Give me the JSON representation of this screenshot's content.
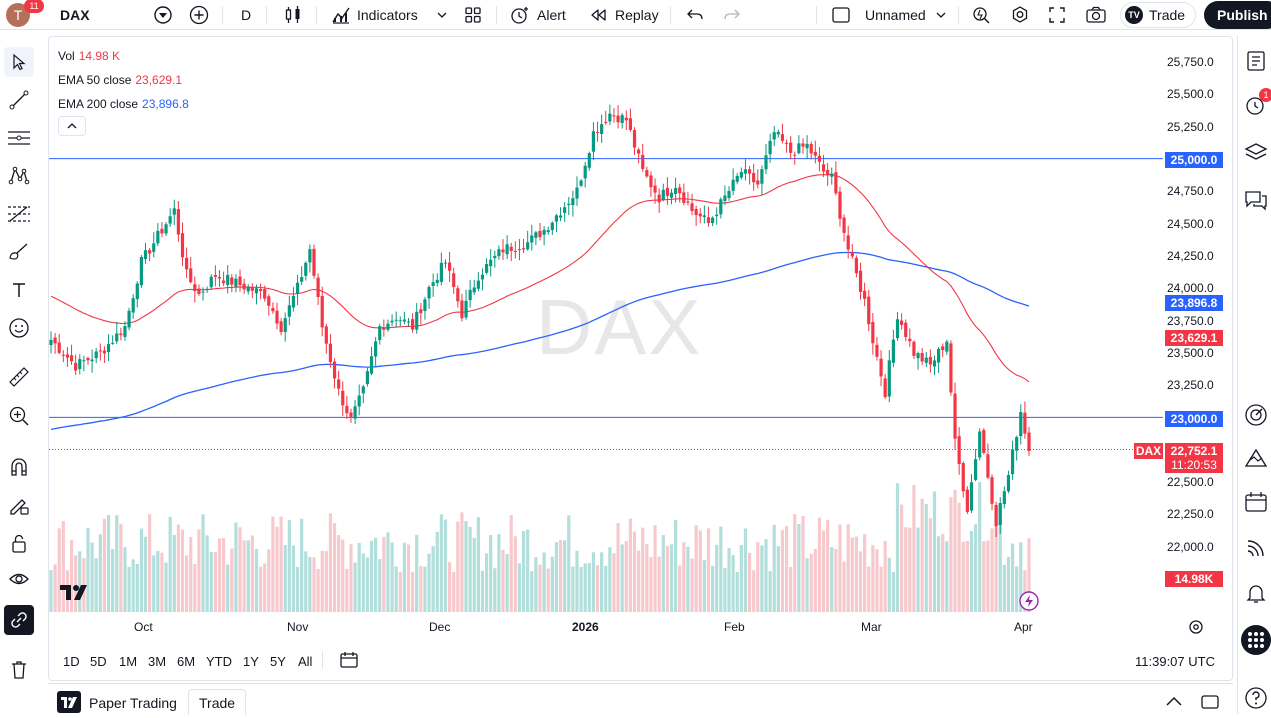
{
  "topbar": {
    "avatar_letter": "T",
    "notification_count": "11",
    "symbol": "DAX",
    "interval": "D",
    "indicators_label": "Indicators",
    "alert_label": "Alert",
    "replay_label": "Replay",
    "layout_name": "Unnamed",
    "trade_label": "Trade",
    "publish_label": "Publish"
  },
  "legend": {
    "vol_label": "Vol",
    "vol_value": "14.98 K",
    "ema50_label": "EMA 50 close",
    "ema50_value": "23,629.1",
    "ema200_label": "EMA 200 close",
    "ema200_value": "23,896.8"
  },
  "watermark": "DAX",
  "colors": {
    "up": "#089981",
    "down": "#f23645",
    "ema50": "#f23645",
    "ema200": "#2962ff",
    "hline": "#2962ff",
    "vol_up": "#b2dfdb",
    "vol_down": "#f7c9cd"
  },
  "price_axis": {
    "labels": [
      "25,750.0",
      "25,500.0",
      "25,250.0",
      "24,750.0",
      "24,500.0",
      "24,250.0",
      "24,000.0",
      "23,750.0",
      "23,500.0",
      "23,250.0",
      "22,500.0",
      "22,250.0",
      "22,000.0"
    ],
    "hline_upper": "25,000.0",
    "hline_lower": "23,000.0",
    "ema200_tag": "23,896.8",
    "ema50_tag": "23,629.1",
    "last_price": "22,752.1",
    "countdown": "11:20:53",
    "last_symbol": "DAX",
    "volume_tag": "14.98K"
  },
  "time_axis": {
    "labels": [
      "Oct",
      "Nov",
      "Dec",
      "2026",
      "Feb",
      "Mar",
      "Apr"
    ]
  },
  "ranges": [
    "1D",
    "5D",
    "1M",
    "3M",
    "6M",
    "YTD",
    "1Y",
    "5Y",
    "All"
  ],
  "clock": "11:39:07 UTC",
  "footer": {
    "paper_trading": "Paper Trading",
    "trade": "Trade"
  },
  "right_toolbar": {
    "alerts_badge": "1"
  },
  "chart_data": {
    "type": "candlestick",
    "symbol": "DAX",
    "interval": "D",
    "hlines": [
      25000,
      23000
    ],
    "last_price": 22752.1,
    "series": [
      {
        "name": "EMA 50 close",
        "last": 23629.1
      },
      {
        "name": "EMA 200 close",
        "last": 23896.8
      },
      {
        "name": "Vol",
        "last": "14.98 K"
      }
    ],
    "ylim": [
      21800,
      25850
    ],
    "x_ticks": [
      "Oct",
      "Nov",
      "Dec",
      "2026",
      "Feb",
      "Mar",
      "Apr"
    ]
  }
}
